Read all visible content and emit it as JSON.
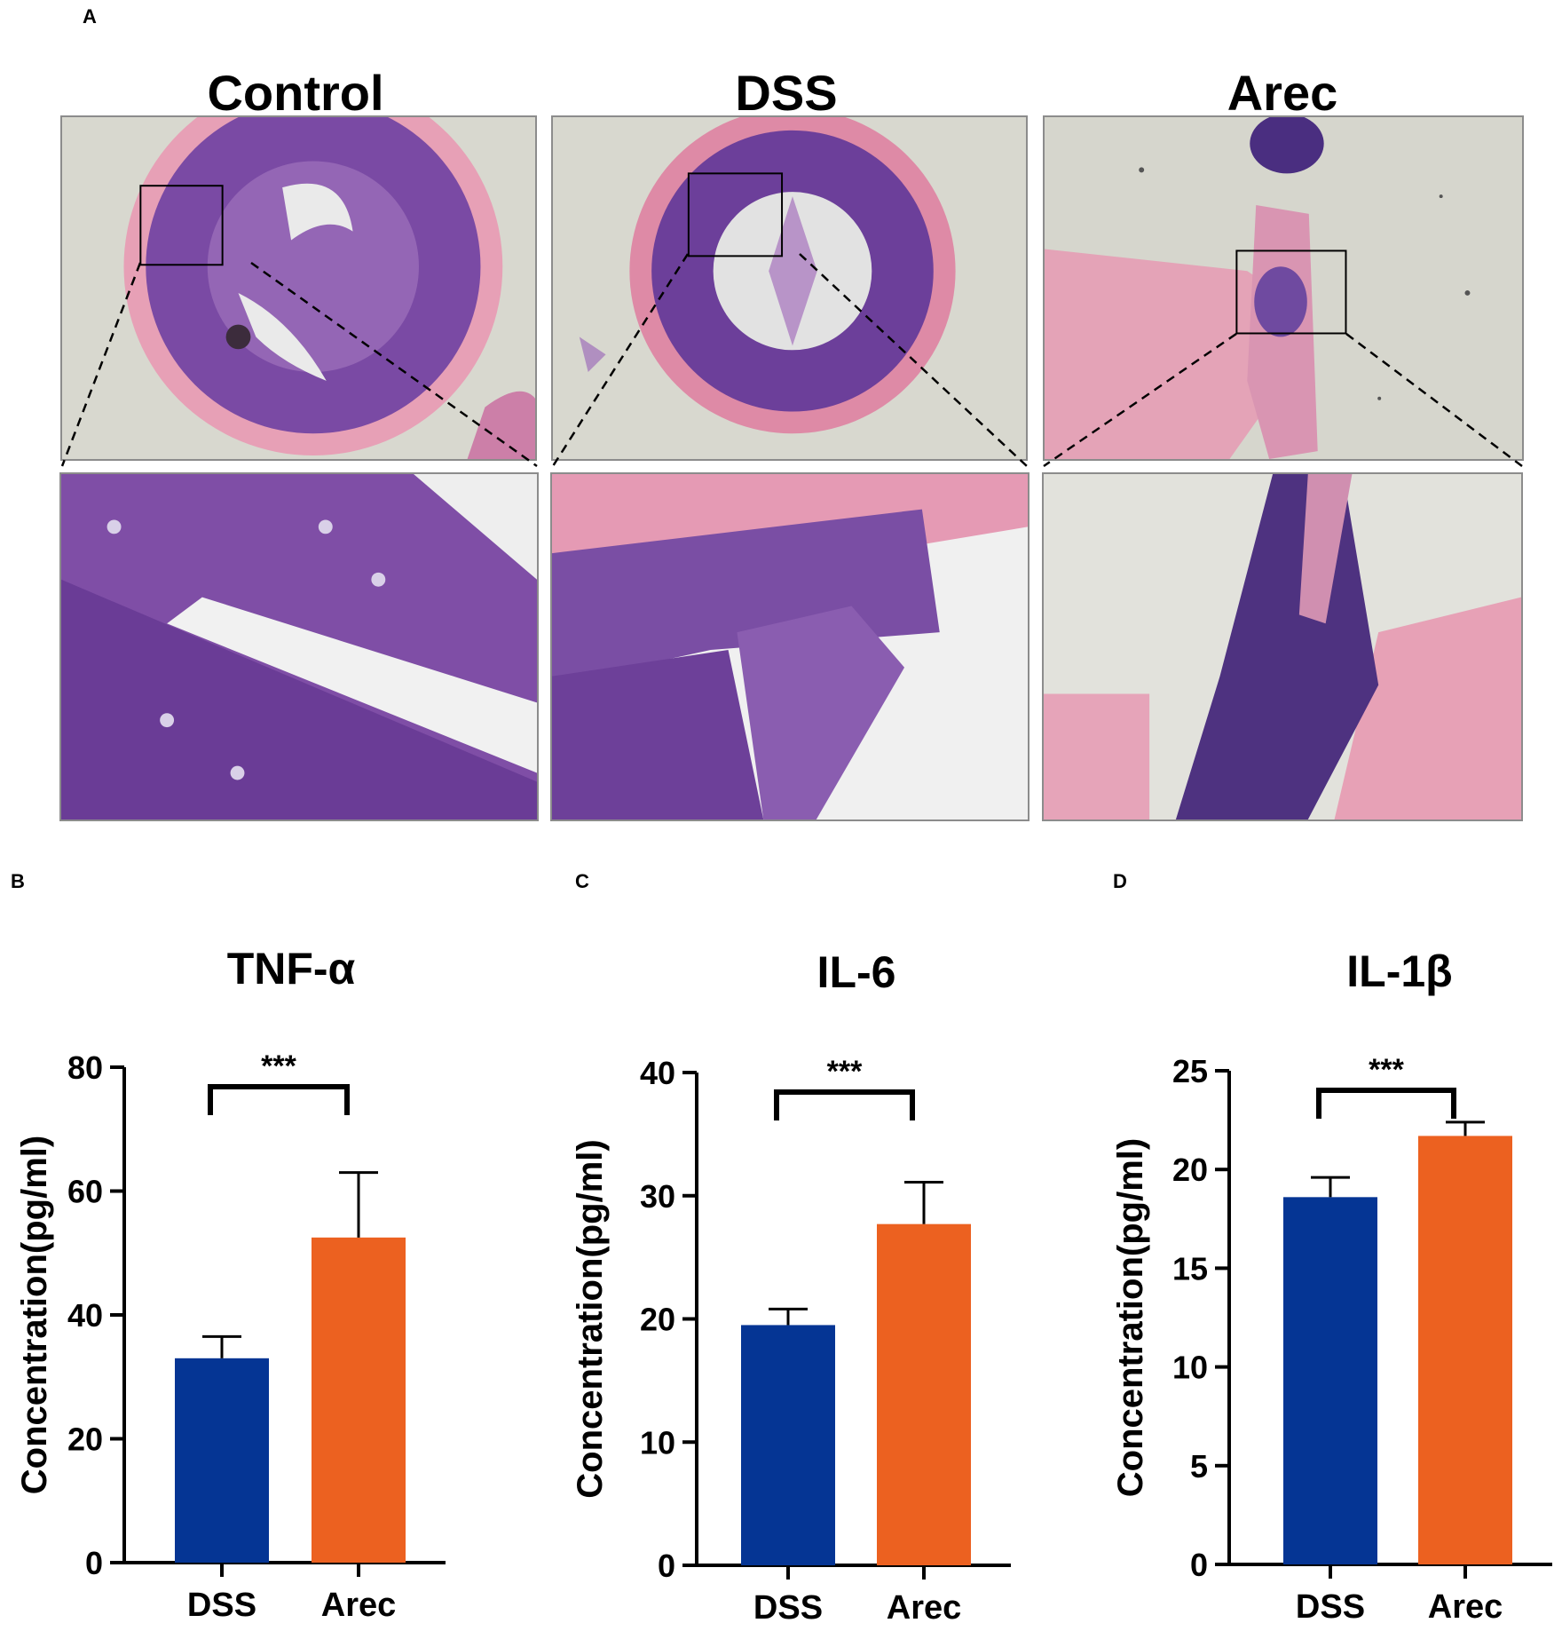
{
  "panel_letters": {
    "a": "A",
    "b": "B",
    "c": "C",
    "d": "D"
  },
  "micrographs": {
    "groups": [
      "Control",
      "DSS",
      "Arec"
    ]
  },
  "colors": {
    "dss": "#053594",
    "arec": "#ec6120",
    "he_pink": "#e8a0b8",
    "he_purple": "#6a3f9c",
    "background": "#d9d9d0"
  },
  "chart_data": [
    {
      "type": "bar",
      "title": "TNF-α",
      "ylabel": "Concentration(pg/ml)",
      "categories": [
        "DSS",
        "Arec"
      ],
      "values": [
        33,
        52.5
      ],
      "errors": [
        3.5,
        10.5
      ],
      "ylim": [
        0,
        80
      ],
      "yticks": [
        0,
        20,
        40,
        60,
        80
      ],
      "significance": "***"
    },
    {
      "type": "bar",
      "title": "IL-6",
      "ylabel": "Concentration(pg/ml)",
      "categories": [
        "DSS",
        "Arec"
      ],
      "values": [
        19.5,
        27.7
      ],
      "errors": [
        1.3,
        3.4
      ],
      "ylim": [
        0,
        40
      ],
      "yticks": [
        0,
        10,
        20,
        30,
        40
      ],
      "significance": "***"
    },
    {
      "type": "bar",
      "title": "IL-1β",
      "ylabel": "Concentration(pg/ml)",
      "categories": [
        "DSS",
        "Arec"
      ],
      "values": [
        18.6,
        21.7
      ],
      "errors": [
        1.0,
        0.7
      ],
      "ylim": [
        0,
        25
      ],
      "yticks": [
        0,
        5,
        10,
        15,
        20,
        25
      ],
      "significance": "***"
    }
  ]
}
